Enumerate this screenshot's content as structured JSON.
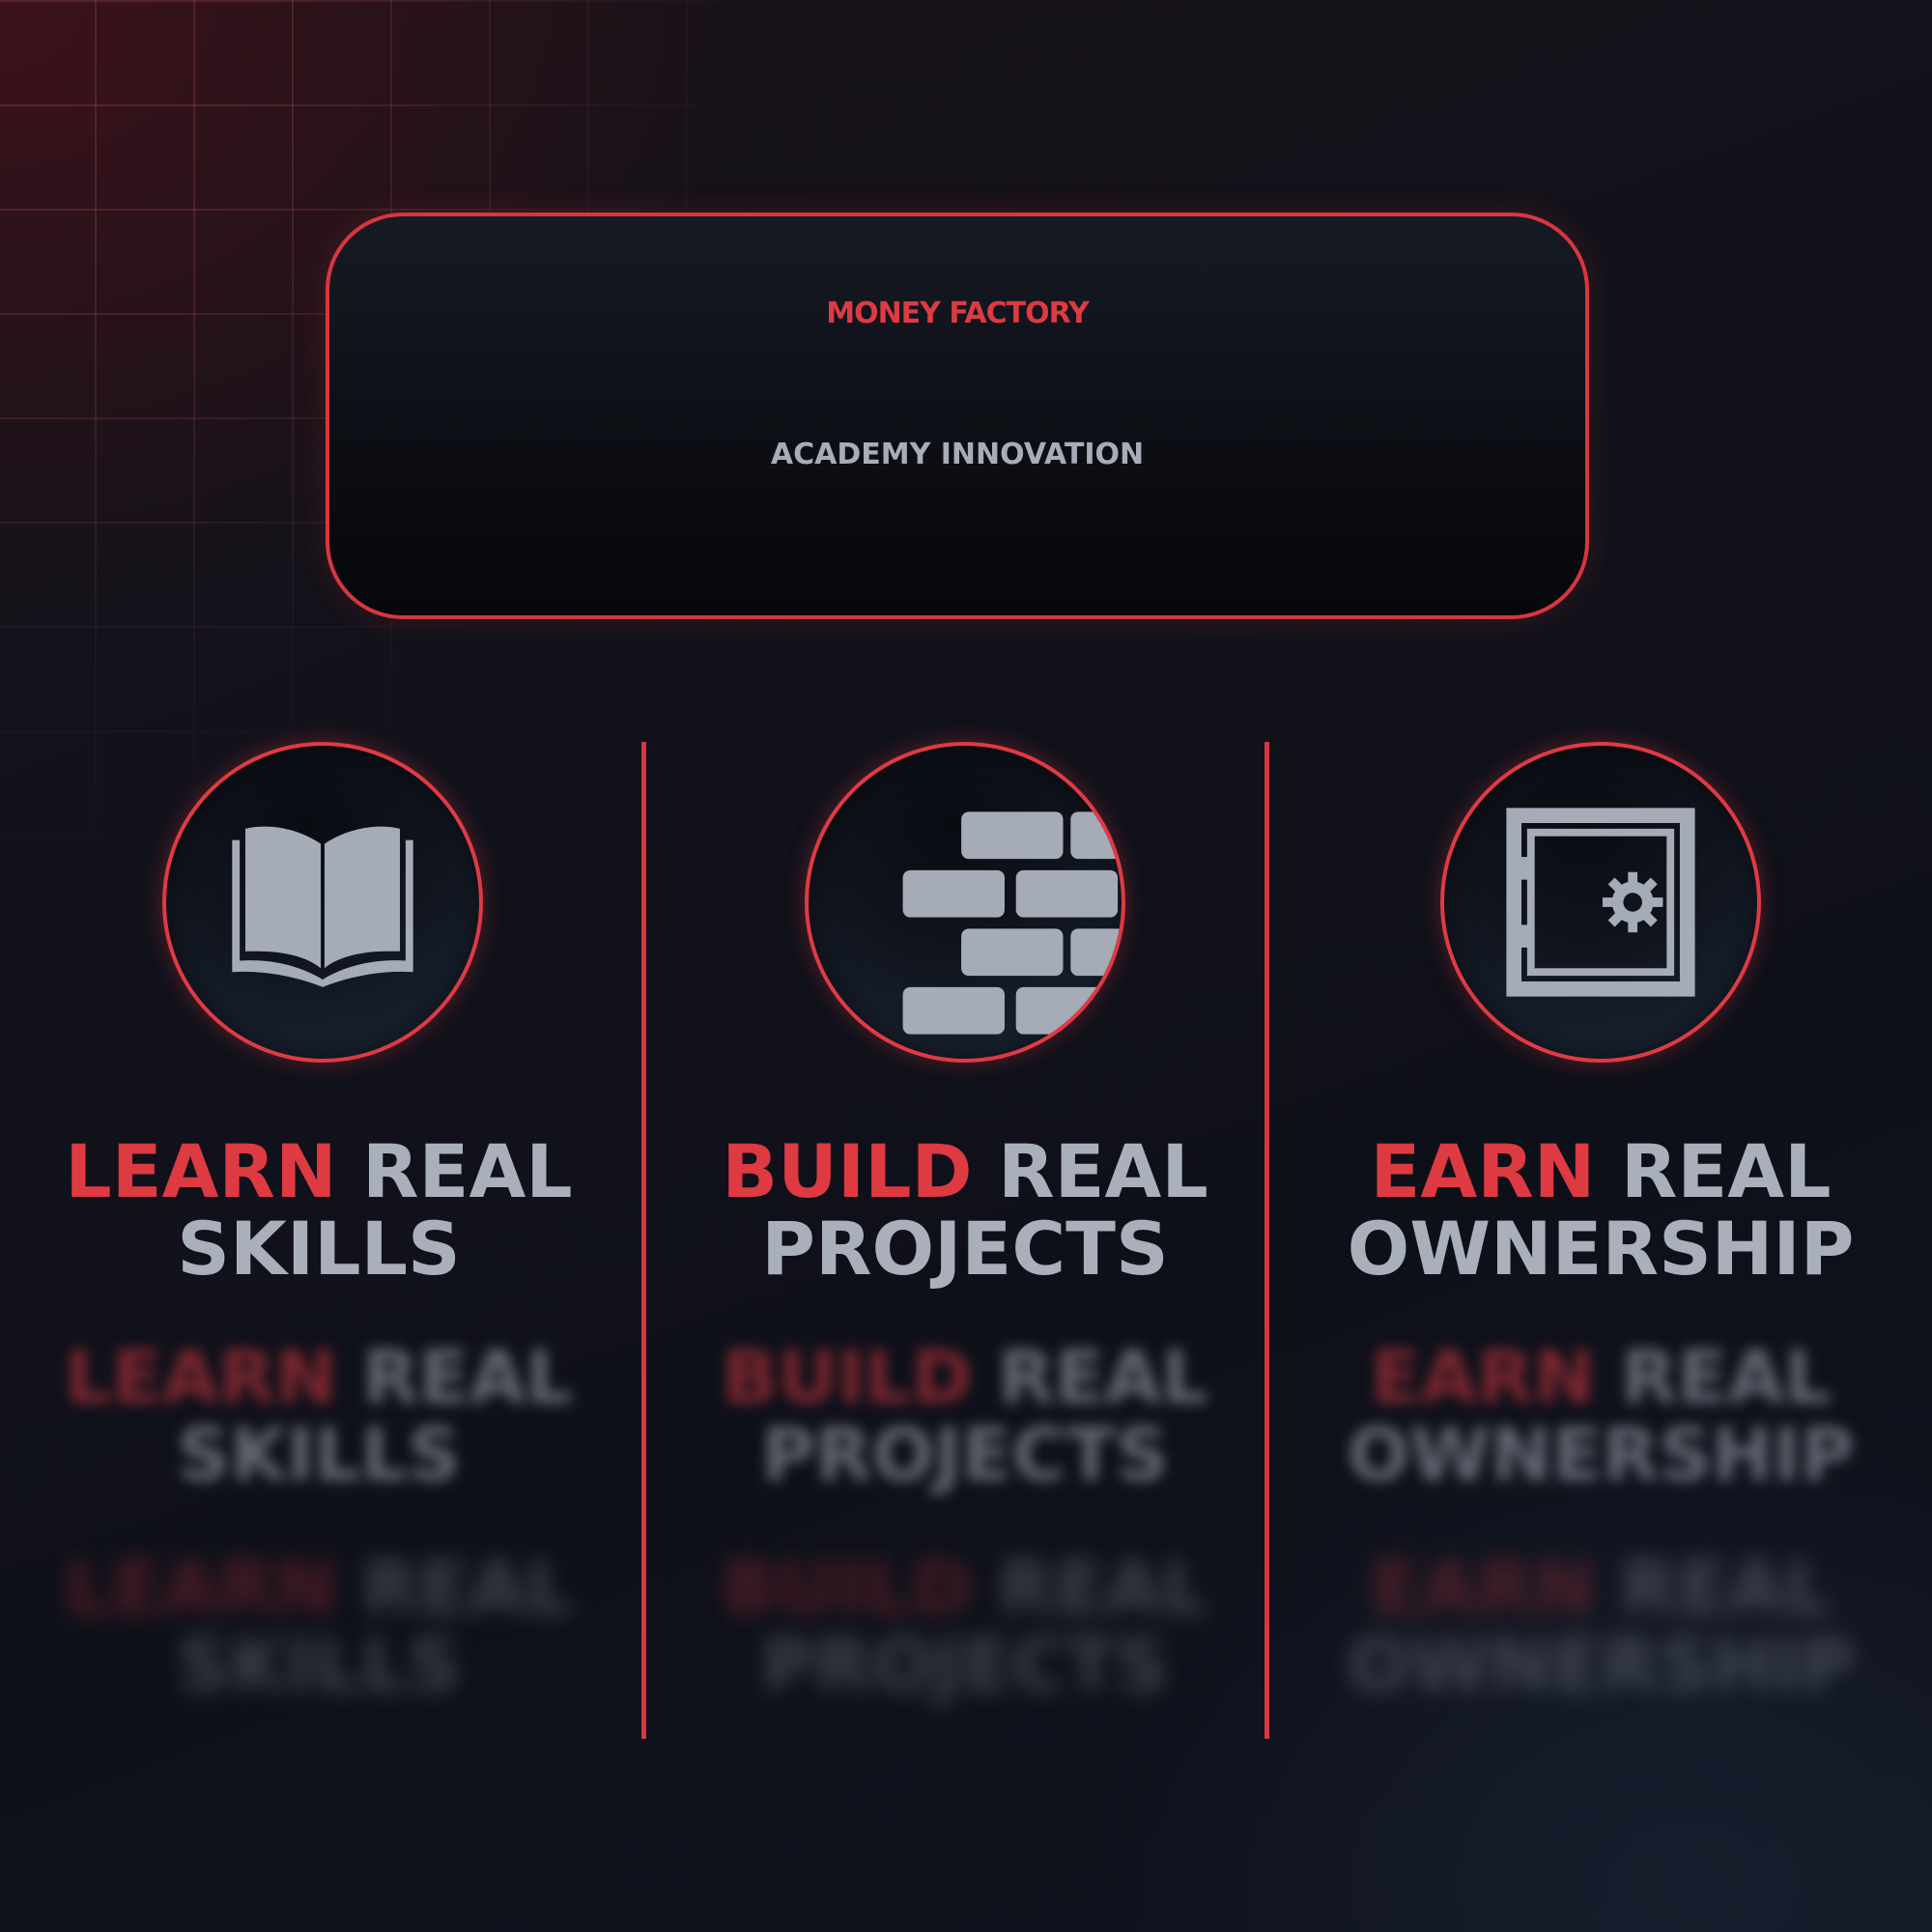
{
  "title": {
    "main": "MONEY FACTORY",
    "sub": "ACADEMY INNOVATION"
  },
  "columns": [
    {
      "icon": "open-book-icon",
      "accent": "LEARN",
      "rest": "REAL",
      "line2": "SKILLS"
    },
    {
      "icon": "brick-wall-icon",
      "accent": "BUILD",
      "rest": "REAL",
      "line2": "PROJECTS"
    },
    {
      "icon": "vault-safe-icon",
      "accent": "EARN",
      "rest": "REAL",
      "line2": "OWNERSHIP"
    }
  ],
  "colors": {
    "accent_red": "#dd3a42",
    "text_gray": "#aab0bb",
    "icon_gray": "#a5acb8",
    "background": "#11131c"
  }
}
